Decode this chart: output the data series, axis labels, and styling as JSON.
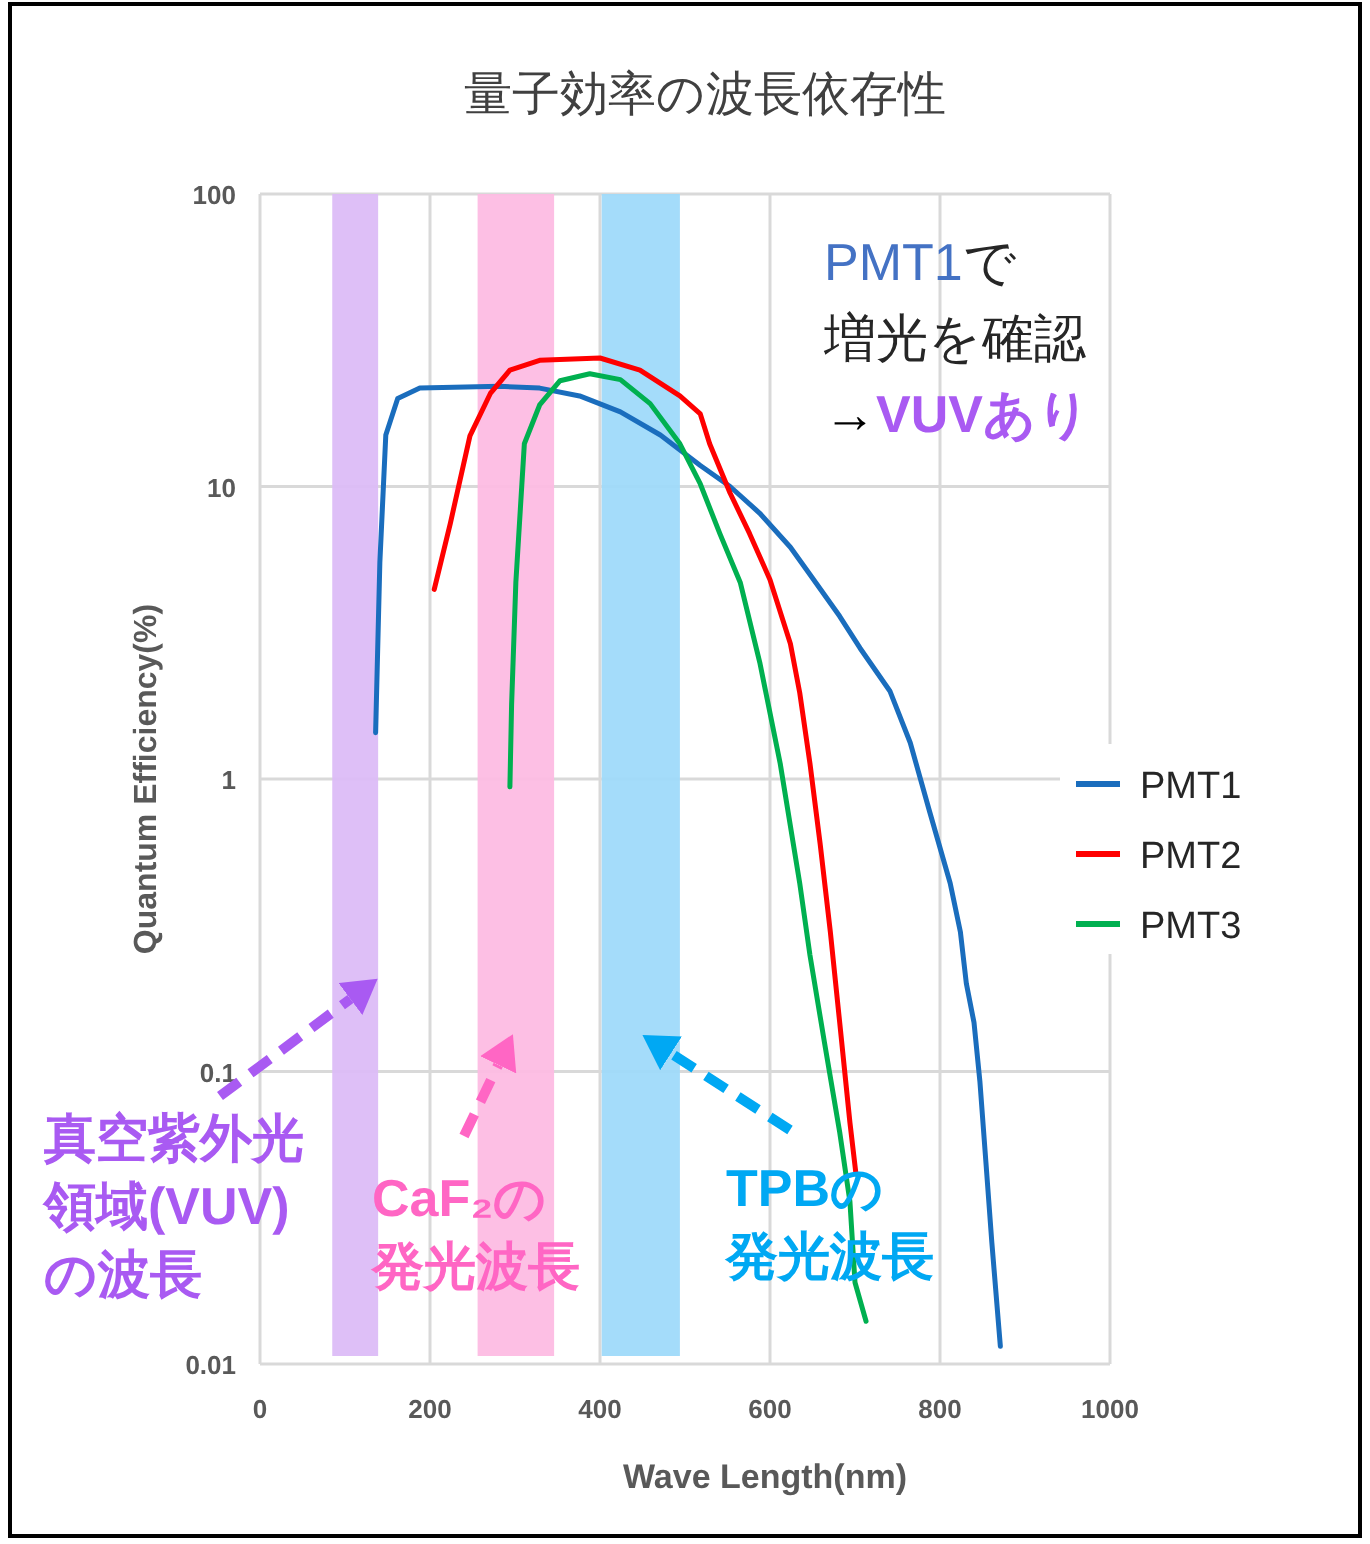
{
  "chart_data": {
    "type": "line",
    "title": "量子効率の波長依存性",
    "xlabel": "Wave Length(nm)",
    "ylabel": "Quantum Efficiency(%)",
    "log": "y",
    "xlim": [
      0,
      1000
    ],
    "xticks": [
      0,
      200,
      400,
      600,
      800,
      1000
    ],
    "ylim": [
      0.01,
      100
    ],
    "yticks": [
      0.01,
      0.1,
      1,
      10,
      100
    ],
    "grid": true,
    "legend": "right",
    "marker": "none",
    "line_style": "solid",
    "series": [
      {
        "name": "PMT1",
        "color": "#1a6dbd",
        "x": [
          136,
          141,
          148,
          162,
          188,
          282,
          329,
          376,
          424,
          471,
          518,
          553,
          588,
          624,
          647,
          682,
          706,
          741,
          765,
          788,
          812,
          824,
          831,
          840,
          847,
          854,
          861,
          871
        ],
        "values": [
          1.44,
          5.5,
          15,
          20,
          21.7,
          22,
          21.7,
          20.4,
          18,
          15,
          11.8,
          10,
          8.1,
          6.2,
          5,
          3.6,
          2.8,
          2,
          1.33,
          0.77,
          0.44,
          0.3,
          0.2,
          0.147,
          0.092,
          0.049,
          0.026,
          0.0115
        ]
      },
      {
        "name": "PMT2",
        "color": "#ff0000",
        "x": [
          205,
          224,
          247,
          271,
          294,
          329,
          400,
          447,
          494,
          518,
          529,
          553,
          576,
          600,
          624,
          635,
          647,
          659,
          671,
          682,
          694,
          701
        ],
        "values": [
          4.45,
          7.5,
          14.9,
          20.8,
          25,
          27,
          27.5,
          25,
          20.4,
          17.7,
          14,
          9.5,
          6.9,
          4.8,
          2.9,
          1.97,
          1.13,
          0.6,
          0.3,
          0.147,
          0.067,
          0.045
        ]
      },
      {
        "name": "PMT3",
        "color": "#00b050",
        "x": [
          294,
          296,
          301,
          311,
          329,
          353,
          388,
          424,
          459,
          494,
          518,
          541,
          565,
          588,
          612,
          635,
          647,
          664,
          682,
          694,
          700,
          713
        ],
        "values": [
          0.94,
          1.8,
          4.7,
          14,
          19,
          23,
          24.3,
          23.2,
          19.2,
          14,
          10.2,
          6.9,
          4.7,
          2.5,
          1.13,
          0.44,
          0.25,
          0.126,
          0.062,
          0.036,
          0.019,
          0.014
        ]
      }
    ],
    "bands": [
      {
        "axis": "x",
        "from": 85,
        "to": 139,
        "label": "真空紫外光領域(VUV)の波長",
        "color": "#dcbcf7"
      },
      {
        "axis": "x",
        "from": 256,
        "to": 346,
        "label": "CaF₂の発光波長",
        "color": "#fdbce3"
      },
      {
        "axis": "x",
        "from": 402,
        "to": 494,
        "label": "TPBの発光波長",
        "color": "#9fdafa"
      }
    ],
    "annotations": [
      "PMT1",
      "で",
      "増光を確認",
      "→",
      "VUVあり"
    ]
  }
}
